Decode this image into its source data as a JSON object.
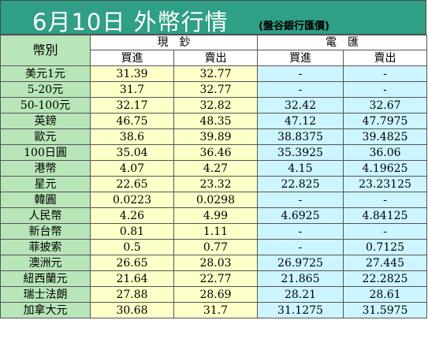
{
  "title": "6月10日 外幣行情",
  "subtitle": "(盤谷銀行匯價)",
  "headers": {
    "currency": "幣別",
    "cash": "現　鈔",
    "remit": "電　匯",
    "buy": "買進",
    "sell": "賣出"
  },
  "colors": {
    "banner": "#2f9f86",
    "currency_column": "#b9e6b9",
    "cash_columns": "#ffffc8",
    "remit_columns": "#ccf5ff"
  },
  "rows": [
    {
      "currency": "美元1元",
      "cash_buy": "31.39",
      "cash_sell": "32.77",
      "remit_buy": "-",
      "remit_sell": "-"
    },
    {
      "currency": "5-20元",
      "cash_buy": "31.7",
      "cash_sell": "32.77",
      "remit_buy": "-",
      "remit_sell": "-"
    },
    {
      "currency": "50-100元",
      "cash_buy": "32.17",
      "cash_sell": "32.82",
      "remit_buy": "32.42",
      "remit_sell": "32.67"
    },
    {
      "currency": "英鎊",
      "cash_buy": "46.75",
      "cash_sell": "48.35",
      "remit_buy": "47.12",
      "remit_sell": "47.7975"
    },
    {
      "currency": "歐元",
      "cash_buy": "38.6",
      "cash_sell": "39.89",
      "remit_buy": "38.8375",
      "remit_sell": "39.4825"
    },
    {
      "currency": "100日圓",
      "cash_buy": "35.04",
      "cash_sell": "36.46",
      "remit_buy": "35.3925",
      "remit_sell": "36.06"
    },
    {
      "currency": "港幣",
      "cash_buy": "4.07",
      "cash_sell": "4.27",
      "remit_buy": "4.15",
      "remit_sell": "4.19625"
    },
    {
      "currency": "星元",
      "cash_buy": "22.65",
      "cash_sell": "23.32",
      "remit_buy": "22.825",
      "remit_sell": "23.23125"
    },
    {
      "currency": "韓圓",
      "cash_buy": "0.0223",
      "cash_sell": "0.0298",
      "remit_buy": "-",
      "remit_sell": "-"
    },
    {
      "currency": "人民幣",
      "cash_buy": "4.26",
      "cash_sell": "4.99",
      "remit_buy": "4.6925",
      "remit_sell": "4.84125"
    },
    {
      "currency": "新台幣",
      "cash_buy": "0.81",
      "cash_sell": "1.11",
      "remit_buy": "-",
      "remit_sell": "-"
    },
    {
      "currency": "菲披索",
      "cash_buy": "0.5",
      "cash_sell": "0.77",
      "remit_buy": "-",
      "remit_sell": "0.7125"
    },
    {
      "currency": "澳洲元",
      "cash_buy": "26.65",
      "cash_sell": "28.03",
      "remit_buy": "26.9725",
      "remit_sell": "27.445"
    },
    {
      "currency": "紐西蘭元",
      "cash_buy": "21.64",
      "cash_sell": "22.77",
      "remit_buy": "21.865",
      "remit_sell": "22.2825"
    },
    {
      "currency": "瑞士法朗",
      "cash_buy": "27.88",
      "cash_sell": "28.69",
      "remit_buy": "28.21",
      "remit_sell": "28.61"
    },
    {
      "currency": "加拿大元",
      "cash_buy": "30.68",
      "cash_sell": "31.7",
      "remit_buy": "31.1275",
      "remit_sell": "31.5975"
    }
  ]
}
